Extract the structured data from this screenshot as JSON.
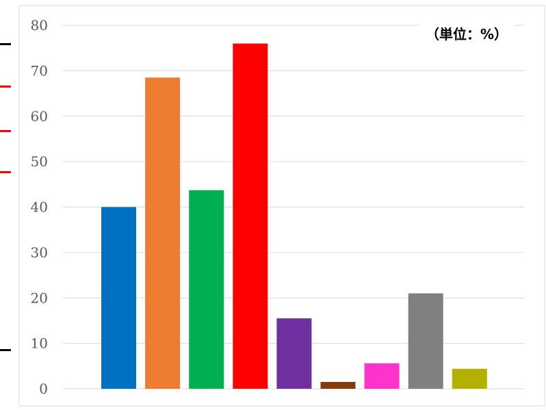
{
  "chart_data": {
    "type": "bar",
    "title": "",
    "xlabel": "",
    "ylabel": "",
    "unit_label": "（単位：%）",
    "ylim": [
      0,
      80
    ],
    "yticks": [
      0,
      10,
      20,
      30,
      40,
      50,
      60,
      70,
      80
    ],
    "grid": true,
    "categories": [
      "",
      "",
      "",
      "",
      "",
      "",
      "",
      "",
      ""
    ],
    "values": [
      40,
      68.5,
      43.7,
      76,
      15.5,
      1.5,
      5.6,
      21,
      4.4
    ],
    "colors": [
      "#0070C0",
      "#ED7D31",
      "#00B050",
      "#FF0000",
      "#7030A0",
      "#843C0C",
      "#FF33CC",
      "#808080",
      "#B4B000"
    ]
  },
  "side_marks": {
    "colors": [
      "#000000",
      "#FF0000",
      "#FF0000",
      "#FF0000",
      "#000000"
    ]
  }
}
